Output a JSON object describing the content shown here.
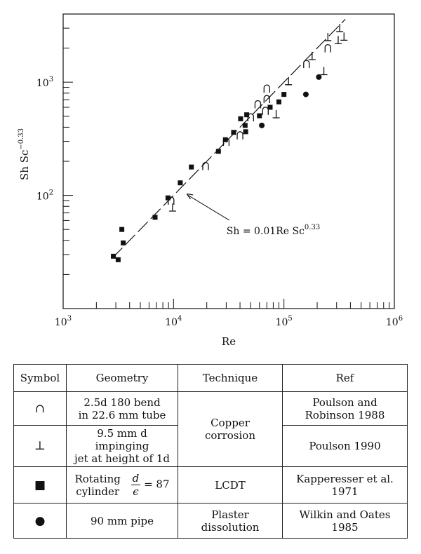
{
  "chart_data": {
    "type": "scatter",
    "xscale": "log",
    "yscale": "log",
    "xlim": [
      1000,
      1000000
    ],
    "ylim": [
      10,
      4000
    ],
    "xlabel": "Re",
    "ylabel_base": "Sh Sc",
    "ylabel_exp": "−0.33",
    "x_tick_labels": [
      {
        "value": 1000,
        "base": "10",
        "exp": "3"
      },
      {
        "value": 10000,
        "base": "10",
        "exp": "4"
      },
      {
        "value": 100000,
        "base": "10",
        "exp": "5"
      },
      {
        "value": 1000000,
        "base": "10",
        "exp": "6"
      }
    ],
    "y_tick_labels": [
      {
        "value": 100,
        "base": "10",
        "exp": "2"
      },
      {
        "value": 1000,
        "base": "10",
        "exp": "3"
      }
    ],
    "fit_line": {
      "coef": 0.01,
      "x_range": [
        2800,
        360000
      ]
    },
    "annotation": {
      "text_base": "Sh = 0.01Re Sc",
      "text_exp": "0.33",
      "x": 32000,
      "y": 48,
      "arrow_to": [
        13200,
        103
      ]
    },
    "grid": false,
    "series": [
      {
        "symbol": "bend",
        "marker": "∩",
        "points": [
          [
            9500,
            90
          ],
          [
            19500,
            182
          ],
          [
            30000,
            298
          ],
          [
            40000,
            340
          ],
          [
            50000,
            490
          ],
          [
            58000,
            640
          ],
          [
            68000,
            560
          ],
          [
            70000,
            710
          ],
          [
            70000,
            880
          ],
          [
            160000,
            1450
          ],
          [
            250000,
            2000
          ]
        ]
      },
      {
        "symbol": "jet",
        "marker": "⊥",
        "points": [
          [
            9800,
            78
          ],
          [
            85000,
            520
          ],
          [
            110000,
            1020
          ],
          [
            180000,
            1700
          ],
          [
            230000,
            1250
          ],
          [
            250000,
            2500
          ],
          [
            310000,
            2350
          ],
          [
            320000,
            3000
          ],
          [
            350000,
            2520
          ]
        ]
      },
      {
        "symbol": "cylinder",
        "marker": "■",
        "points": [
          [
            2850,
            29
          ],
          [
            3150,
            27
          ],
          [
            3400,
            50
          ],
          [
            3500,
            38
          ],
          [
            6800,
            64
          ],
          [
            8900,
            95
          ],
          [
            11500,
            129
          ],
          [
            14500,
            178
          ],
          [
            25500,
            245
          ],
          [
            29500,
            310
          ],
          [
            35000,
            360
          ],
          [
            40500,
            475
          ],
          [
            44500,
            415
          ],
          [
            45000,
            365
          ],
          [
            46000,
            515
          ],
          [
            60000,
            505
          ],
          [
            75000,
            600
          ],
          [
            90000,
            670
          ],
          [
            100000,
            780
          ]
        ]
      },
      {
        "symbol": "pipe",
        "marker": "●",
        "points": [
          [
            63000,
            415
          ],
          [
            158000,
            780
          ],
          [
            207000,
            1110
          ]
        ]
      }
    ]
  },
  "table": {
    "headers": [
      "Symbol",
      "Geometry",
      "Technique",
      "Ref"
    ],
    "rows": [
      {
        "symbol": "∩",
        "geometry_line1": "2.5d 180 bend",
        "geometry_line2": "in 22.6 mm tube",
        "technique_line1": "Copper",
        "technique_line2": "corrosion",
        "ref_line1": "Poulson and",
        "ref_line2": "Robinson 1988"
      },
      {
        "symbol": "⊥",
        "geometry_line1": "9.5 mm d impinging",
        "geometry_line2": "jet at height of 1d",
        "ref_line1": "Poulson 1990"
      },
      {
        "symbol": "■",
        "geometry_line1": "Rotating",
        "geometry_line2": "cylinder",
        "frac_num": "d",
        "frac_den": "ϵ",
        "frac_value": "= 87",
        "technique_line1": "LCDT",
        "ref_line1": "Kapperesser et al. 1971"
      },
      {
        "symbol": "●",
        "geometry_line1": "90 mm pipe",
        "technique_line1": "Plaster",
        "technique_line2": "dissolution",
        "ref_line1": "Wilkin and Oates 1985"
      }
    ]
  }
}
